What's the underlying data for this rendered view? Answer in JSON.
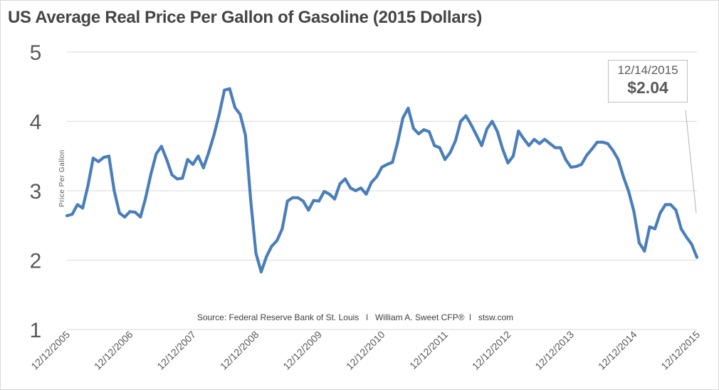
{
  "chart_data": {
    "type": "line",
    "title": "US Average Real Price Per Gallon of Gasoline (2015 Dollars)",
    "ylabel": "Price Per Gallon",
    "xlabel": "",
    "ylim": [
      1,
      5
    ],
    "yticks": [
      "1",
      "2",
      "3",
      "4",
      "5"
    ],
    "xticks": [
      "12/12/2005",
      "12/12/2006",
      "12/12/2007",
      "12/12/2008",
      "12/12/2009",
      "12/12/2010",
      "12/12/2011",
      "12/12/2012",
      "12/12/2013",
      "12/12/2014",
      "12/12/2015"
    ],
    "xlim": [
      "2005-12",
      "2015-12"
    ],
    "grid": true,
    "line_color": "#4a7ebb",
    "x": [
      "2005-12",
      "2006-01",
      "2006-02",
      "2006-03",
      "2006-04",
      "2006-05",
      "2006-06",
      "2006-07",
      "2006-08",
      "2006-09",
      "2006-10",
      "2006-11",
      "2006-12",
      "2007-01",
      "2007-02",
      "2007-03",
      "2007-04",
      "2007-05",
      "2007-06",
      "2007-07",
      "2007-08",
      "2007-09",
      "2007-10",
      "2007-11",
      "2007-12",
      "2008-01",
      "2008-02",
      "2008-03",
      "2008-04",
      "2008-05",
      "2008-06",
      "2008-07",
      "2008-08",
      "2008-09",
      "2008-10",
      "2008-11",
      "2008-12",
      "2009-01",
      "2009-02",
      "2009-03",
      "2009-04",
      "2009-05",
      "2009-06",
      "2009-07",
      "2009-08",
      "2009-09",
      "2009-10",
      "2009-11",
      "2009-12",
      "2010-01",
      "2010-02",
      "2010-03",
      "2010-04",
      "2010-05",
      "2010-06",
      "2010-07",
      "2010-08",
      "2010-09",
      "2010-10",
      "2010-11",
      "2010-12",
      "2011-01",
      "2011-02",
      "2011-03",
      "2011-04",
      "2011-05",
      "2011-06",
      "2011-07",
      "2011-08",
      "2011-09",
      "2011-10",
      "2011-11",
      "2011-12",
      "2012-01",
      "2012-02",
      "2012-03",
      "2012-04",
      "2012-05",
      "2012-06",
      "2012-07",
      "2012-08",
      "2012-09",
      "2012-10",
      "2012-11",
      "2012-12",
      "2013-01",
      "2013-02",
      "2013-03",
      "2013-04",
      "2013-05",
      "2013-06",
      "2013-07",
      "2013-08",
      "2013-09",
      "2013-10",
      "2013-11",
      "2013-12",
      "2014-01",
      "2014-02",
      "2014-03",
      "2014-04",
      "2014-05",
      "2014-06",
      "2014-07",
      "2014-08",
      "2014-09",
      "2014-10",
      "2014-11",
      "2014-12",
      "2015-01",
      "2015-02",
      "2015-03",
      "2015-04",
      "2015-05",
      "2015-06",
      "2015-07",
      "2015-08",
      "2015-09",
      "2015-10",
      "2015-11",
      "2015-12"
    ],
    "values": [
      2.64,
      2.66,
      2.8,
      2.75,
      3.07,
      3.47,
      3.42,
      3.48,
      3.5,
      3.0,
      2.68,
      2.62,
      2.7,
      2.69,
      2.62,
      2.9,
      3.24,
      3.53,
      3.64,
      3.45,
      3.23,
      3.17,
      3.18,
      3.45,
      3.38,
      3.5,
      3.33,
      3.55,
      3.8,
      4.1,
      4.45,
      4.47,
      4.2,
      4.1,
      3.8,
      2.87,
      2.1,
      1.83,
      2.05,
      2.2,
      2.28,
      2.45,
      2.85,
      2.9,
      2.9,
      2.85,
      2.72,
      2.86,
      2.85,
      2.99,
      2.95,
      2.88,
      3.1,
      3.17,
      3.04,
      3.0,
      3.04,
      2.95,
      3.12,
      3.2,
      3.34,
      3.38,
      3.41,
      3.7,
      4.05,
      4.19,
      3.9,
      3.82,
      3.88,
      3.85,
      3.65,
      3.62,
      3.45,
      3.55,
      3.72,
      4.0,
      4.08,
      3.95,
      3.8,
      3.65,
      3.89,
      4.0,
      3.85,
      3.6,
      3.4,
      3.5,
      3.86,
      3.75,
      3.65,
      3.74,
      3.68,
      3.74,
      3.68,
      3.62,
      3.62,
      3.45,
      3.34,
      3.35,
      3.38,
      3.51,
      3.6,
      3.7,
      3.7,
      3.68,
      3.58,
      3.45,
      3.2,
      2.99,
      2.7,
      2.25,
      2.13,
      2.48,
      2.45,
      2.68,
      2.8,
      2.8,
      2.72,
      2.45,
      2.33,
      2.23,
      2.04
    ],
    "annotation": {
      "date": "12/14/2015",
      "value": "$2.04"
    },
    "source": "Source: Federal Reserve Bank of St. Louis   l   William A. Sweet CFP®  l   stsw.com"
  }
}
